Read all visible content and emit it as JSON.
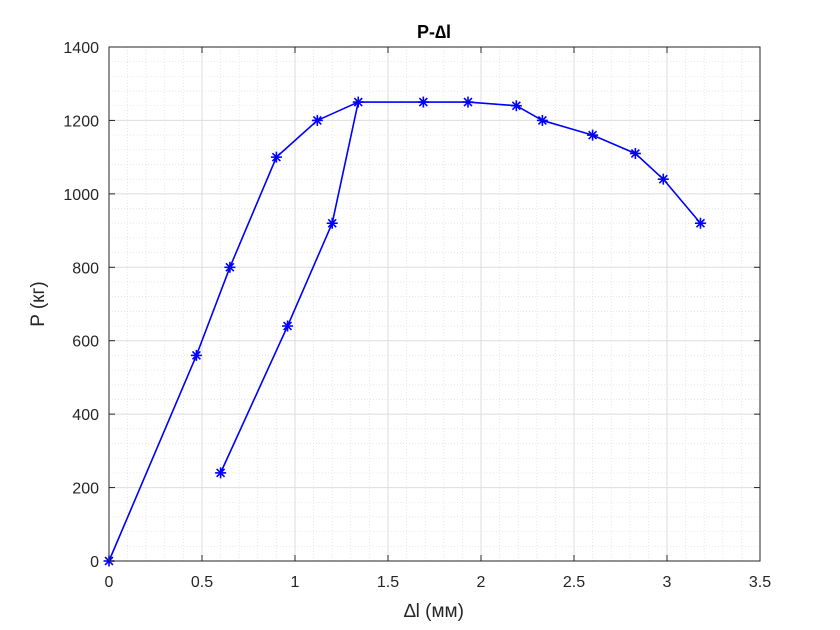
{
  "chart_data": {
    "type": "line",
    "title": "P-∆l",
    "xlabel": "∆l (мм)",
    "ylabel": "P (кг)",
    "xlim": [
      0,
      3.5
    ],
    "ylim": [
      0,
      1400
    ],
    "xticks": [
      0,
      0.5,
      1,
      1.5,
      2,
      2.5,
      3,
      3.5
    ],
    "yticks": [
      0,
      200,
      400,
      600,
      800,
      1000,
      1200,
      1400
    ],
    "xtick_labels": [
      "0",
      "0.5",
      "1",
      "1.5",
      "2",
      "2.5",
      "3",
      "3.5"
    ],
    "ytick_labels": [
      "0",
      "200",
      "400",
      "600",
      "800",
      "1000",
      "1200",
      "1400"
    ],
    "grid": true,
    "minor_grid": true,
    "marker": "asterisk",
    "color": "#0000ff",
    "series": [
      {
        "x": [
          0,
          0.47,
          0.65,
          0.9,
          1.12,
          1.34,
          1.2,
          0.96,
          0.6
        ],
        "y": [
          0,
          560,
          800,
          1100,
          1200,
          1250,
          920,
          640,
          240
        ]
      },
      {
        "x": [
          1.34,
          1.69,
          1.93,
          2.19,
          2.33,
          2.6,
          2.83,
          2.98,
          3.18
        ],
        "y": [
          1250,
          1250,
          1250,
          1240,
          1200,
          1160,
          1110,
          1040,
          920
        ]
      }
    ]
  }
}
